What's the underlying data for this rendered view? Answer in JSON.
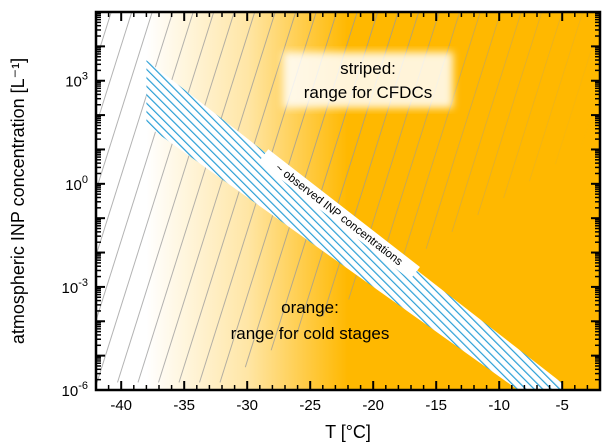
{
  "chart_data": {
    "type": "area",
    "xlabel": "T [°C]",
    "ylabel": "atmospheric INP concentration [L⁻¹]",
    "xlim": [
      -42,
      -2
    ],
    "ylim_log10": [
      -6,
      5
    ],
    "x_ticks": [
      -40,
      -35,
      -30,
      -25,
      -20,
      -15,
      -10,
      -5
    ],
    "x_tick_labels": [
      "-40",
      "-35",
      "-30",
      "-25",
      "-20",
      "-15",
      "-10",
      "-5"
    ],
    "y_ticks_log10": [
      3,
      0,
      -3,
      -6
    ],
    "y_tick_labels": [
      {
        "base": "10",
        "exp": "3"
      },
      {
        "base": "10",
        "exp": "0"
      },
      {
        "base": "10",
        "exp": "-3"
      },
      {
        "base": "10",
        "exp": "-6"
      }
    ],
    "regions": [
      {
        "name": "range for cold stages",
        "style": "orange fill, fading to white toward -40 °C",
        "x_fade_from": -38,
        "x_fade_to": -22,
        "color": "#ffb800"
      },
      {
        "name": "range for CFDCs",
        "style": "gray diagonal stripes",
        "color": "#9a9a9a"
      },
      {
        "name": "~ observed INP concentrations",
        "style": "blue hatched band",
        "color": "#2a9fd6",
        "upper_edge": [
          [
            -38,
            3.6
          ],
          [
            -5,
            -5.8
          ]
        ],
        "lower_edge": [
          [
            -38,
            1.7
          ],
          [
            -8.5,
            -6
          ]
        ],
        "right_edge_x": -5
      }
    ],
    "annotations": {
      "striped_line1": "striped:",
      "striped_line2": "range for CFDCs",
      "orange_line1": "orange:",
      "orange_line2": "range for cold stages",
      "band_label": "~ observed INP concentrations"
    }
  }
}
